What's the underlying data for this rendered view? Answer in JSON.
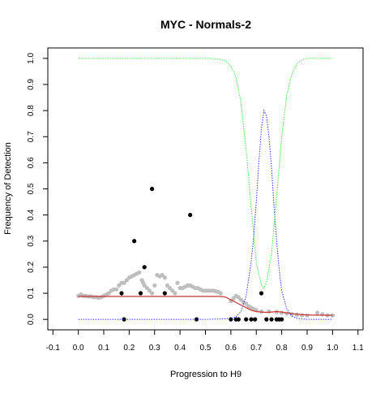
{
  "chart_data": {
    "type": "scatter",
    "title": "MYC - Normals-2",
    "xlabel": "Progression to H9",
    "ylabel": "Frequency of Detection",
    "xlim": [
      -0.12,
      1.12
    ],
    "ylim": [
      -0.04,
      1.04
    ],
    "x_ticks": [
      -0.1,
      0.0,
      0.1,
      0.2,
      0.3,
      0.4,
      0.5,
      0.6,
      0.7,
      0.8,
      0.9,
      1.0,
      1.1
    ],
    "x_tick_labels": [
      "-0.1",
      "0.0",
      "0.1",
      "0.2",
      "0.3",
      "0.4",
      "0.5",
      "0.6",
      "0.7",
      "0.8",
      "0.9",
      "1.0",
      "1.1"
    ],
    "y_ticks": [
      0.0,
      0.1,
      0.2,
      0.3,
      0.4,
      0.5,
      0.6,
      0.7,
      0.8,
      0.9,
      1.0
    ],
    "y_tick_labels": [
      "0.0",
      "0.1",
      "0.2",
      "0.3",
      "0.4",
      "0.5",
      "0.6",
      "0.7",
      "0.8",
      "0.9",
      "1.0"
    ],
    "grid": false,
    "series": [
      {
        "kind": "points",
        "color": "#bebebe",
        "points": [
          [
            0.0,
            0.09
          ],
          [
            0.01,
            0.095
          ],
          [
            0.02,
            0.09
          ],
          [
            0.03,
            0.09
          ],
          [
            0.04,
            0.088
          ],
          [
            0.05,
            0.088
          ],
          [
            0.06,
            0.085
          ],
          [
            0.07,
            0.085
          ],
          [
            0.08,
            0.083
          ],
          [
            0.09,
            0.085
          ],
          [
            0.1,
            0.09
          ],
          [
            0.11,
            0.095
          ],
          [
            0.12,
            0.1
          ],
          [
            0.13,
            0.11
          ],
          [
            0.14,
            0.115
          ],
          [
            0.15,
            0.115
          ],
          [
            0.16,
            0.13
          ],
          [
            0.17,
            0.14
          ],
          [
            0.18,
            0.14
          ],
          [
            0.19,
            0.15
          ],
          [
            0.2,
            0.16
          ],
          [
            0.21,
            0.165
          ],
          [
            0.22,
            0.17
          ],
          [
            0.23,
            0.175
          ],
          [
            0.24,
            0.18
          ],
          [
            0.25,
            0.15
          ],
          [
            0.255,
            0.14
          ],
          [
            0.26,
            0.13
          ],
          [
            0.27,
            0.12
          ],
          [
            0.28,
            0.11
          ],
          [
            0.29,
            0.1
          ],
          [
            0.3,
            0.13
          ],
          [
            0.31,
            0.17
          ],
          [
            0.32,
            0.165
          ],
          [
            0.33,
            0.17
          ],
          [
            0.34,
            0.16
          ],
          [
            0.35,
            0.13
          ],
          [
            0.36,
            0.12
          ],
          [
            0.37,
            0.11
          ],
          [
            0.38,
            0.1
          ],
          [
            0.39,
            0.14
          ],
          [
            0.4,
            0.12
          ],
          [
            0.41,
            0.12
          ],
          [
            0.42,
            0.125
          ],
          [
            0.43,
            0.13
          ],
          [
            0.44,
            0.13
          ],
          [
            0.45,
            0.125
          ],
          [
            0.46,
            0.12
          ],
          [
            0.47,
            0.12
          ],
          [
            0.48,
            0.115
          ],
          [
            0.49,
            0.11
          ],
          [
            0.5,
            0.11
          ],
          [
            0.51,
            0.11
          ],
          [
            0.52,
            0.11
          ],
          [
            0.53,
            0.11
          ],
          [
            0.54,
            0.108
          ],
          [
            0.55,
            0.105
          ],
          [
            0.56,
            0.1
          ],
          [
            0.6,
            0.07
          ],
          [
            0.61,
            0.08
          ],
          [
            0.62,
            0.09
          ],
          [
            0.63,
            0.085
          ],
          [
            0.64,
            0.075
          ],
          [
            0.65,
            0.065
          ],
          [
            0.66,
            0.06
          ],
          [
            0.67,
            0.05
          ],
          [
            0.68,
            0.045
          ],
          [
            0.69,
            0.04
          ],
          [
            0.7,
            0.035
          ],
          [
            0.72,
            0.03
          ],
          [
            0.75,
            0.03
          ],
          [
            0.78,
            0.028
          ],
          [
            0.8,
            0.025
          ],
          [
            0.82,
            0.022
          ],
          [
            0.84,
            0.02
          ],
          [
            0.86,
            0.018
          ],
          [
            0.88,
            0.016
          ],
          [
            0.9,
            0.015
          ],
          [
            0.94,
            0.025
          ],
          [
            0.96,
            0.02
          ],
          [
            0.98,
            0.015
          ],
          [
            1.0,
            0.015
          ]
        ]
      },
      {
        "kind": "points",
        "color": "#000000",
        "points": [
          [
            0.17,
            0.1
          ],
          [
            0.18,
            0.0
          ],
          [
            0.22,
            0.3
          ],
          [
            0.245,
            0.1
          ],
          [
            0.26,
            0.2
          ],
          [
            0.29,
            0.5
          ],
          [
            0.34,
            0.1
          ],
          [
            0.44,
            0.4
          ],
          [
            0.465,
            0.0
          ],
          [
            0.6,
            0.0
          ],
          [
            0.62,
            0.0
          ],
          [
            0.63,
            0.0
          ],
          [
            0.66,
            0.0
          ],
          [
            0.68,
            0.0
          ],
          [
            0.695,
            0.0
          ],
          [
            0.72,
            0.1
          ],
          [
            0.74,
            0.0
          ],
          [
            0.76,
            0.0
          ],
          [
            0.78,
            0.0
          ],
          [
            0.79,
            0.0
          ],
          [
            0.8,
            0.0
          ]
        ]
      },
      {
        "kind": "line",
        "color": "#cc3333",
        "style": "solid",
        "points": [
          [
            0.0,
            0.088
          ],
          [
            0.1,
            0.088
          ],
          [
            0.2,
            0.088
          ],
          [
            0.3,
            0.088
          ],
          [
            0.4,
            0.088
          ],
          [
            0.5,
            0.088
          ],
          [
            0.56,
            0.088
          ],
          [
            0.58,
            0.085
          ],
          [
            0.6,
            0.075
          ],
          [
            0.62,
            0.065
          ],
          [
            0.64,
            0.055
          ],
          [
            0.66,
            0.045
          ],
          [
            0.68,
            0.035
          ],
          [
            0.7,
            0.03
          ],
          [
            0.72,
            0.028
          ],
          [
            0.74,
            0.027
          ],
          [
            0.76,
            0.028
          ],
          [
            0.78,
            0.03
          ],
          [
            0.8,
            0.028
          ],
          [
            0.82,
            0.025
          ],
          [
            0.84,
            0.022
          ],
          [
            0.86,
            0.02
          ],
          [
            0.88,
            0.018
          ],
          [
            0.9,
            0.017
          ],
          [
            0.95,
            0.016
          ],
          [
            1.0,
            0.016
          ]
        ]
      },
      {
        "kind": "line",
        "color": "#3333ff",
        "style": "dotted",
        "points": [
          [
            0.0,
            0.0
          ],
          [
            0.5,
            0.0
          ],
          [
            0.6,
            0.003
          ],
          [
            0.62,
            0.01
          ],
          [
            0.64,
            0.03
          ],
          [
            0.66,
            0.09
          ],
          [
            0.68,
            0.22
          ],
          [
            0.69,
            0.32
          ],
          [
            0.7,
            0.45
          ],
          [
            0.71,
            0.6
          ],
          [
            0.72,
            0.73
          ],
          [
            0.73,
            0.8
          ],
          [
            0.74,
            0.78
          ],
          [
            0.75,
            0.7
          ],
          [
            0.76,
            0.58
          ],
          [
            0.77,
            0.43
          ],
          [
            0.78,
            0.3
          ],
          [
            0.79,
            0.19
          ],
          [
            0.8,
            0.11
          ],
          [
            0.82,
            0.04
          ],
          [
            0.84,
            0.012
          ],
          [
            0.86,
            0.004
          ],
          [
            0.9,
            0.0
          ],
          [
            1.0,
            0.0
          ]
        ]
      },
      {
        "kind": "line",
        "color": "#33ee33",
        "style": "dotted",
        "points": [
          [
            0.0,
            1.0
          ],
          [
            0.5,
            1.0
          ],
          [
            0.55,
            0.998
          ],
          [
            0.58,
            0.99
          ],
          [
            0.6,
            0.97
          ],
          [
            0.62,
            0.93
          ],
          [
            0.64,
            0.83
          ],
          [
            0.66,
            0.65
          ],
          [
            0.68,
            0.43
          ],
          [
            0.7,
            0.22
          ],
          [
            0.72,
            0.13
          ],
          [
            0.73,
            0.12
          ],
          [
            0.74,
            0.14
          ],
          [
            0.76,
            0.25
          ],
          [
            0.78,
            0.47
          ],
          [
            0.8,
            0.7
          ],
          [
            0.82,
            0.86
          ],
          [
            0.84,
            0.94
          ],
          [
            0.86,
            0.98
          ],
          [
            0.88,
            0.995
          ],
          [
            0.9,
            1.0
          ],
          [
            1.0,
            1.0
          ]
        ]
      }
    ]
  }
}
